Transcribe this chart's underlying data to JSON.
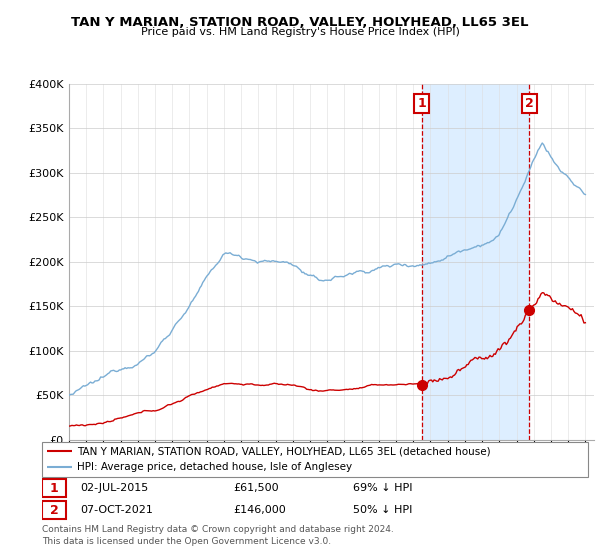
{
  "title": "TAN Y MARIAN, STATION ROAD, VALLEY, HOLYHEAD, LL65 3EL",
  "subtitle": "Price paid vs. HM Land Registry's House Price Index (HPI)",
  "legend_entry1": "TAN Y MARIAN, STATION ROAD, VALLEY, HOLYHEAD, LL65 3EL (detached house)",
  "legend_entry2": "HPI: Average price, detached house, Isle of Anglesey",
  "sale1_date": "02-JUL-2015",
  "sale1_price": "£61,500",
  "sale1_hpi": "69% ↓ HPI",
  "sale1_year": 2015.5,
  "sale1_value": 61500,
  "sale2_date": "07-OCT-2021",
  "sale2_price": "£146,000",
  "sale2_hpi": "50% ↓ HPI",
  "sale2_year": 2021.75,
  "sale2_value": 146000,
  "footer": "Contains HM Land Registry data © Crown copyright and database right 2024.\nThis data is licensed under the Open Government Licence v3.0.",
  "hpi_color": "#7aadd4",
  "sale_color": "#cc0000",
  "shade_color": "#ddeeff",
  "ylim_max": 400000,
  "ylim_min": 0,
  "xlim_min": 1995,
  "xlim_max": 2025.5
}
